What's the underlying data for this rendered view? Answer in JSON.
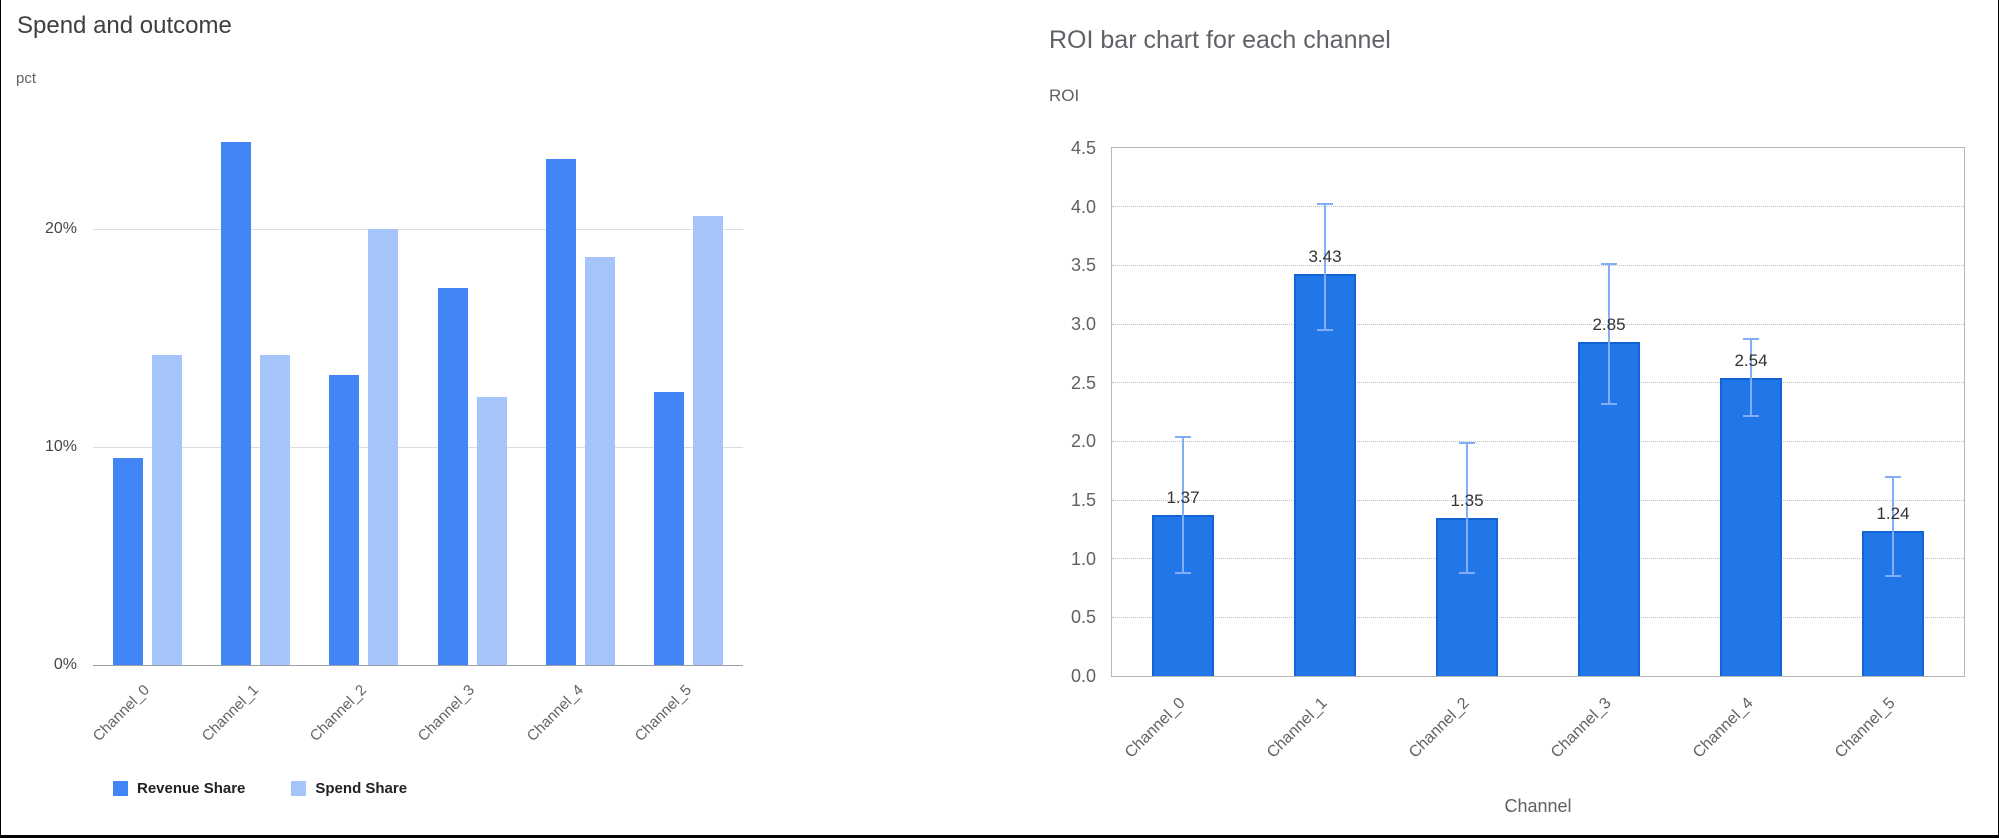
{
  "page": {
    "background": "#ffffff",
    "border_color": "#000000"
  },
  "chart_data": [
    {
      "type": "bar",
      "title": "Spend and outcome",
      "ylabel": "pct",
      "xlabel": "",
      "categories": [
        "Channel_0",
        "Channel_1",
        "Channel_2",
        "Channel_3",
        "Channel_4",
        "Channel_5"
      ],
      "series": [
        {
          "name": "Revenue Share",
          "color": "#4285f4",
          "values": [
            9.5,
            24.0,
            13.3,
            17.3,
            23.2,
            12.5
          ]
        },
        {
          "name": "Spend Share",
          "color": "#a5c4f9",
          "values": [
            14.2,
            14.2,
            20.0,
            12.3,
            18.7,
            20.6
          ]
        }
      ],
      "ylim": [
        0,
        25
      ],
      "y_ticks": [
        "0%",
        "10%",
        "20%"
      ],
      "y_tick_values": [
        0,
        10,
        20
      ],
      "grid": true,
      "legend_position": "bottom"
    },
    {
      "type": "bar",
      "title": "ROI bar chart for each channel",
      "ylabel": "ROI",
      "xlabel": "Channel",
      "categories": [
        "Channel_0",
        "Channel_1",
        "Channel_2",
        "Channel_3",
        "Channel_4",
        "Channel_5"
      ],
      "values": [
        1.37,
        3.43,
        1.35,
        2.85,
        2.54,
        1.24
      ],
      "data_labels": [
        "1.37",
        "3.43",
        "1.35",
        "2.85",
        "2.54",
        "1.24"
      ],
      "error_min": [
        0.88,
        2.95,
        0.88,
        2.32,
        2.22,
        0.85
      ],
      "error_max": [
        2.04,
        4.02,
        1.99,
        3.51,
        2.87,
        1.7
      ],
      "ylim": [
        0,
        4.5
      ],
      "y_ticks": [
        "4.5",
        "4.0",
        "3.5",
        "3.0",
        "2.5",
        "2.0",
        "1.5",
        "1.0",
        "0.5",
        "0.0"
      ],
      "bar_color": "#2177e8",
      "bar_edge_color": "#1263d6",
      "error_color": "#82aef7",
      "grid": "dotted",
      "legend_position": "none"
    }
  ]
}
